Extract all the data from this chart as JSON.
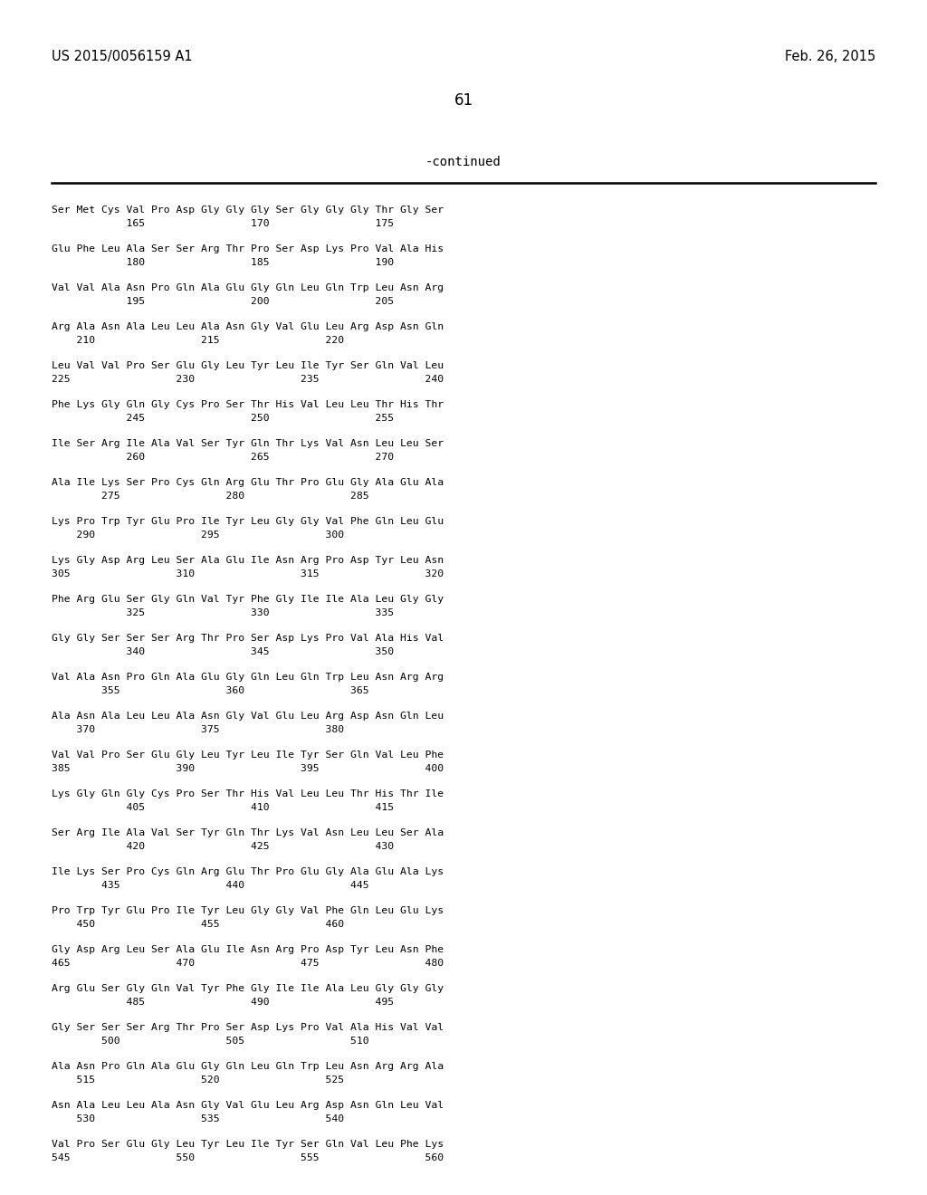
{
  "background_color": "#ffffff",
  "header_left": "US 2015/0056159 A1",
  "header_right": "Feb. 26, 2015",
  "page_number": "61",
  "continued_text": "-continued",
  "seq_blocks": [
    [
      "Ser Met Cys Val Pro Asp Gly Gly Gly Ser Gly Gly Gly Thr Gly Ser",
      "            165                 170                 175"
    ],
    [
      "Glu Phe Leu Ala Ser Ser Arg Thr Pro Ser Asp Lys Pro Val Ala His",
      "            180                 185                 190"
    ],
    [
      "Val Val Ala Asn Pro Gln Ala Glu Gly Gln Leu Gln Trp Leu Asn Arg",
      "            195                 200                 205"
    ],
    [
      "Arg Ala Asn Ala Leu Leu Ala Asn Gly Val Glu Leu Arg Asp Asn Gln",
      "    210                 215                 220"
    ],
    [
      "Leu Val Val Pro Ser Glu Gly Leu Tyr Leu Ile Tyr Ser Gln Val Leu",
      "225                 230                 235                 240"
    ],
    [
      "Phe Lys Gly Gln Gly Cys Pro Ser Thr His Val Leu Leu Thr His Thr",
      "            245                 250                 255"
    ],
    [
      "Ile Ser Arg Ile Ala Val Ser Tyr Gln Thr Lys Val Asn Leu Leu Ser",
      "            260                 265                 270"
    ],
    [
      "Ala Ile Lys Ser Pro Cys Gln Arg Glu Thr Pro Glu Gly Ala Glu Ala",
      "        275                 280                 285"
    ],
    [
      "Lys Pro Trp Tyr Glu Pro Ile Tyr Leu Gly Gly Val Phe Gln Leu Glu",
      "    290                 295                 300"
    ],
    [
      "Lys Gly Asp Arg Leu Ser Ala Glu Ile Asn Arg Pro Asp Tyr Leu Asn",
      "305                 310                 315                 320"
    ],
    [
      "Phe Arg Glu Ser Gly Gln Val Tyr Phe Gly Ile Ile Ala Leu Gly Gly",
      "            325                 330                 335"
    ],
    [
      "Gly Gly Ser Ser Ser Arg Thr Pro Ser Asp Lys Pro Val Ala His Val",
      "            340                 345                 350"
    ],
    [
      "Val Ala Asn Pro Gln Ala Glu Gly Gln Leu Gln Trp Leu Asn Arg Arg",
      "        355                 360                 365"
    ],
    [
      "Ala Asn Ala Leu Leu Ala Asn Gly Val Glu Leu Arg Asp Asn Gln Leu",
      "    370                 375                 380"
    ],
    [
      "Val Val Pro Ser Glu Gly Leu Tyr Leu Ile Tyr Ser Gln Val Leu Phe",
      "385                 390                 395                 400"
    ],
    [
      "Lys Gly Gln Gly Cys Pro Ser Thr His Val Leu Leu Thr His Thr Ile",
      "            405                 410                 415"
    ],
    [
      "Ser Arg Ile Ala Val Ser Tyr Gln Thr Lys Val Asn Leu Leu Ser Ala",
      "            420                 425                 430"
    ],
    [
      "Ile Lys Ser Pro Cys Gln Arg Glu Thr Pro Glu Gly Ala Glu Ala Lys",
      "        435                 440                 445"
    ],
    [
      "Pro Trp Tyr Glu Pro Ile Tyr Leu Gly Gly Val Phe Gln Leu Glu Lys",
      "    450                 455                 460"
    ],
    [
      "Gly Asp Arg Leu Ser Ala Glu Ile Asn Arg Pro Asp Tyr Leu Asn Phe",
      "465                 470                 475                 480"
    ],
    [
      "Arg Glu Ser Gly Gln Val Tyr Phe Gly Ile Ile Ala Leu Gly Gly Gly",
      "            485                 490                 495"
    ],
    [
      "Gly Ser Ser Ser Arg Thr Pro Ser Asp Lys Pro Val Ala His Val Val",
      "        500                 505                 510"
    ],
    [
      "Ala Asn Pro Gln Ala Glu Gly Gln Leu Gln Trp Leu Asn Arg Arg Ala",
      "    515                 520                 525"
    ],
    [
      "Asn Ala Leu Leu Ala Asn Gly Val Glu Leu Arg Asp Asn Gln Leu Val",
      "    530                 535                 540"
    ],
    [
      "Val Pro Ser Glu Gly Leu Tyr Leu Ile Tyr Ser Gln Val Leu Phe Lys",
      "545                 550                 555                 560"
    ]
  ]
}
